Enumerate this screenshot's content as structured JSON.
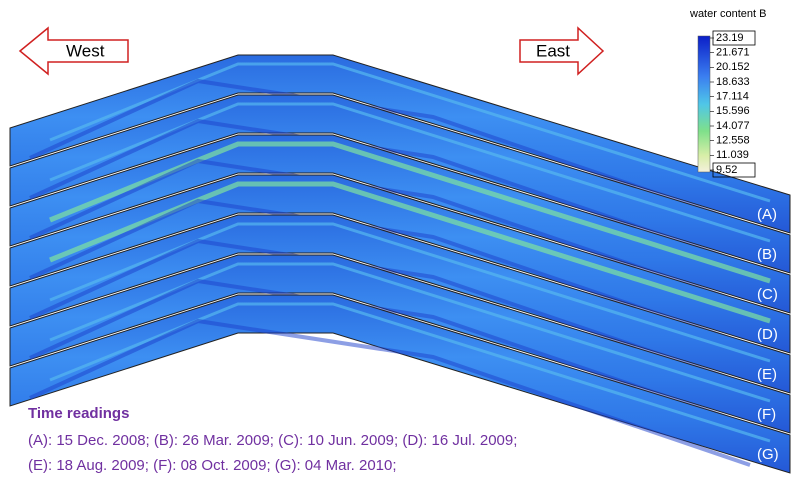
{
  "arrows": {
    "west": "West",
    "east": "East"
  },
  "colorbar": {
    "title": "water content B",
    "ticks": [
      23.19,
      21.671,
      20.152,
      18.633,
      17.114,
      15.596,
      14.077,
      12.558,
      11.039,
      9.52
    ]
  },
  "panels": [
    "(A)",
    "(B)",
    "(C)",
    "(D)",
    "(E)",
    "(F)",
    "(G)"
  ],
  "time_readings": {
    "title": "Time readings",
    "lines": [
      "(A): 15 Dec. 2008; (B): 26 Mar. 2009; (C): 10 Jun. 2009; (D): 16 Jul. 2009;",
      "(E): 18 Aug. 2009; (F): 08 Oct. 2009; (G): 04 Mar. 2010;"
    ]
  }
}
